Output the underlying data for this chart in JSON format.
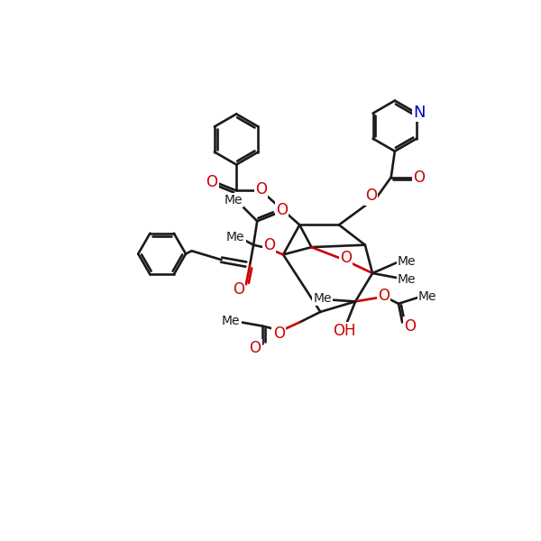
{
  "bg": "#ffffff",
  "bk": "#1a1a1a",
  "rd": "#cc0000",
  "bl": "#0000cc",
  "lw": 1.9,
  "figsize": [
    6.0,
    6.0
  ],
  "dpi": 100
}
